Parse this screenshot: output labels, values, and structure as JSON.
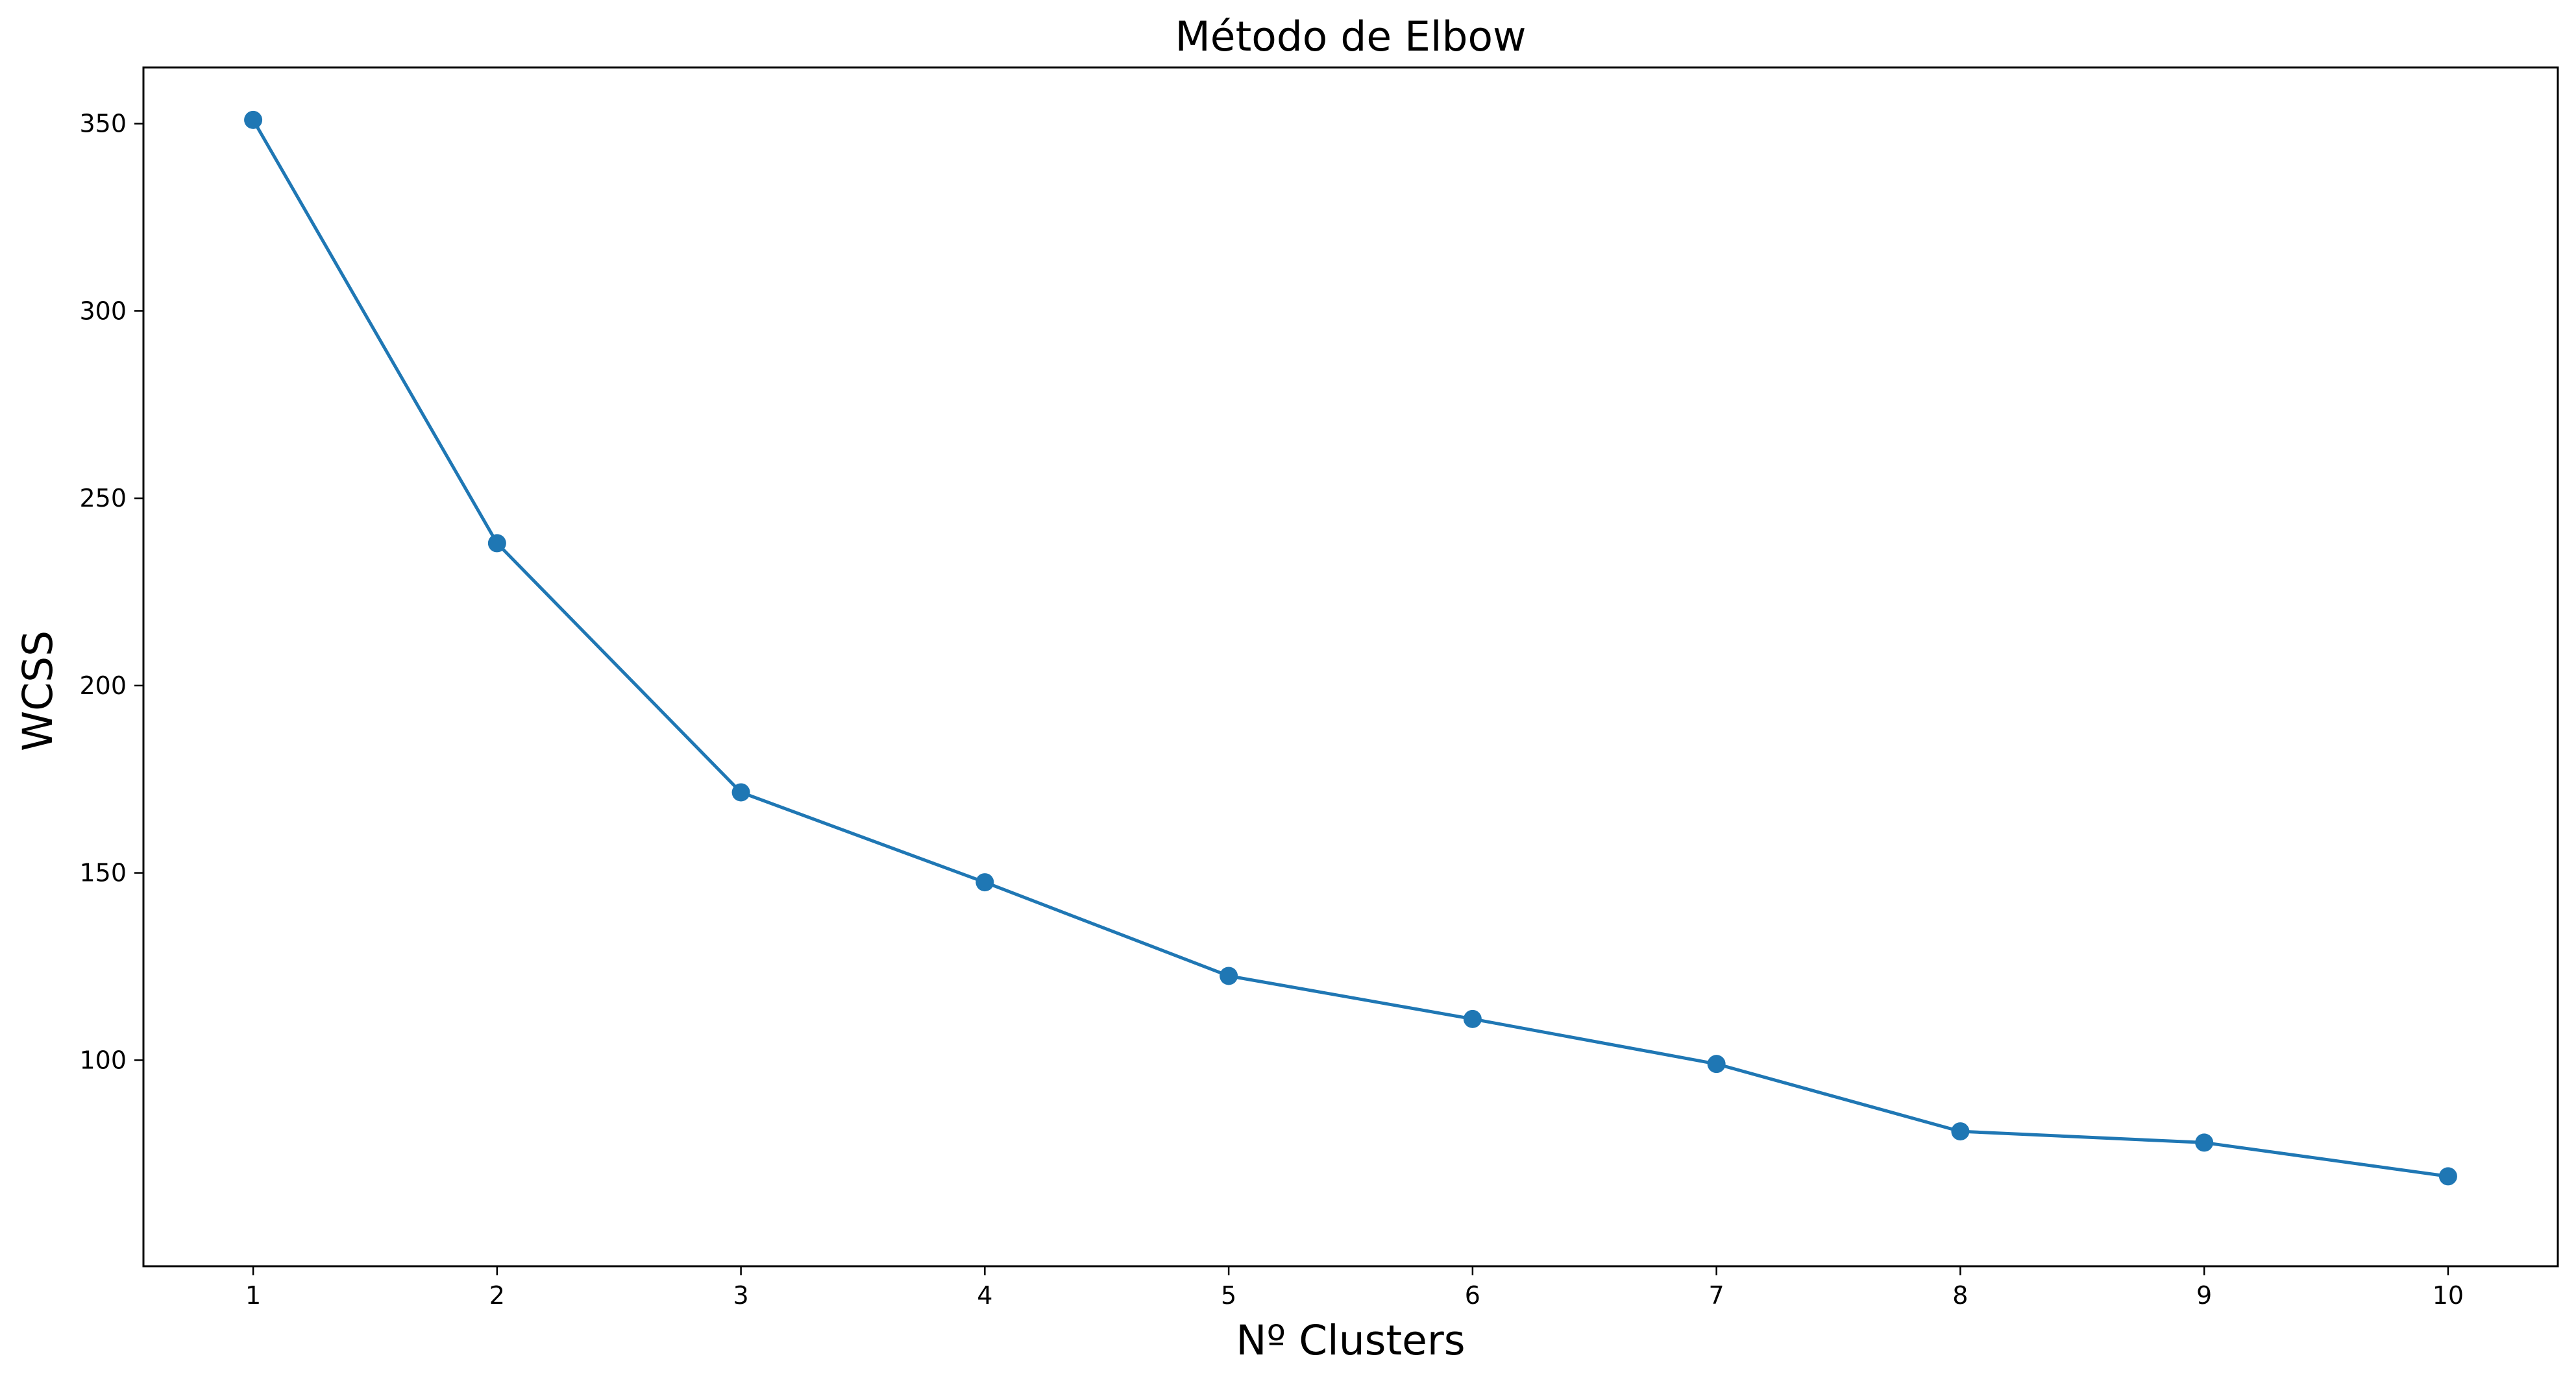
{
  "chart_data": {
    "type": "line",
    "title": "Método de Elbow",
    "xlabel": "Nº Clusters",
    "ylabel": "WCSS",
    "x": [
      1,
      2,
      3,
      4,
      5,
      6,
      7,
      8,
      9,
      10
    ],
    "series": [
      {
        "values": [
          351,
          238,
          171.5,
          147.5,
          122.5,
          111,
          99,
          81,
          78,
          69
        ],
        "color": "#1f77b4",
        "marker": "circle"
      }
    ],
    "xticks": [
      "1",
      "2",
      "3",
      "4",
      "5",
      "6",
      "7",
      "8",
      "9",
      "10"
    ],
    "yticks": [
      "100",
      "150",
      "200",
      "250",
      "300",
      "350"
    ],
    "xlim": [
      0.55,
      10.45
    ],
    "ylim": [
      45,
      365
    ],
    "grid": false,
    "legend": "none"
  }
}
